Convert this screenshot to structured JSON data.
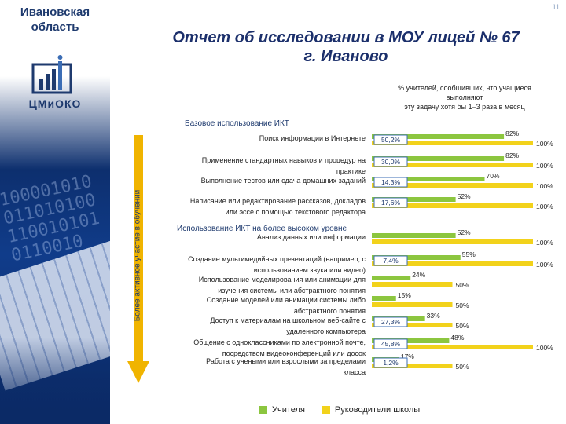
{
  "slide_number": "11",
  "region": {
    "line1": "Ивановская",
    "line2": "область"
  },
  "logo_text": "ЦМиОКО",
  "report_title": {
    "line1": "Отчет об исследовании в МОУ лицей № 67",
    "line2": "г. Иваново"
  },
  "note": {
    "line1": "% учителей, сообщивших, что учащиеся",
    "line2": "выполняют",
    "line3": "эту задачу хотя бы 1–3 раза в месяц"
  },
  "side_label": "Более активное участие в обучении",
  "colors": {
    "teachers": "#8cc63f",
    "heads": "#f2d21b",
    "arrow": "#f0b400",
    "box_border": "#3b6db5"
  },
  "chart_data": {
    "type": "bar",
    "orientation": "horizontal",
    "sections": [
      {
        "title": "Базовое использование ИКТ",
        "items": [
          0,
          1,
          2,
          3
        ]
      },
      {
        "title": "Использование ИКТ на более высоком уровне",
        "items": [
          4,
          5,
          6,
          7,
          8,
          9,
          10
        ]
      }
    ],
    "categories": [
      [
        "Поиск информации в Интернете"
      ],
      [
        "Применение стандартных навыков и процедур на",
        "практике"
      ],
      [
        "Выполнение тестов или сдача домашних заданий"
      ],
      [
        "Написание или редактирование рассказов, докладов",
        "или эссе с помощью текстового редактора"
      ],
      [
        "Анализ данных или информации"
      ],
      [
        "Создание мультимедийных презентаций (например, с",
        "использованием звука или видео)"
      ],
      [
        "Использование моделирования или анимации для",
        "изучения системы или абстрактного понятия"
      ],
      [
        "Создание моделей или анимации системы либо",
        "абстрактного понятия"
      ],
      [
        "Доступ к материалам на школьном веб-сайте с",
        "удаленного компьютера"
      ],
      [
        "Общение с одноклассниками по электронной почте,",
        "посредством видеоконференций или досок"
      ],
      [
        "Работа с учеными или взрослыми за пределами",
        "класса"
      ]
    ],
    "series": [
      {
        "name": "Учителя",
        "values": [
          82,
          82,
          70,
          52,
          52,
          55,
          24,
          15,
          33,
          48,
          17
        ],
        "labels": [
          "82%",
          "82%",
          "70%",
          "52%",
          "52%",
          "55%",
          "24%",
          "15%",
          "33%",
          "48%",
          "17%"
        ]
      },
      {
        "name": "Руководители школы",
        "values": [
          100,
          100,
          100,
          100,
          100,
          100,
          50,
          50,
          50,
          100,
          50
        ],
        "labels": [
          "100%",
          "100%",
          "100%",
          "100%",
          "100%",
          "100%",
          "50%",
          "50%",
          "50%",
          "100%",
          "50%"
        ]
      }
    ],
    "school_boxes": [
      "50,2%",
      "30,0%",
      "14,3%",
      "17,6%",
      "",
      "7,4%",
      "",
      "",
      "27,3%",
      "45,8%",
      "1,2%"
    ],
    "xlim": [
      0,
      100
    ]
  }
}
